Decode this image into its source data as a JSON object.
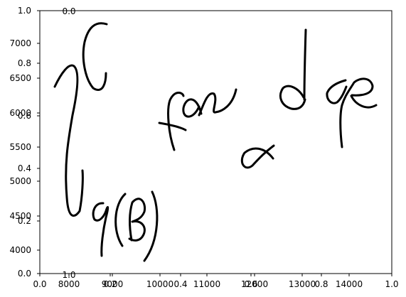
{
  "figure": {
    "background": "#ffffff",
    "ink_color": "#000000"
  },
  "axes": {
    "y_left_outer": {
      "ticks": [
        "0.0",
        "0.2",
        "0.4",
        "0.6",
        "0.8",
        "1.0"
      ]
    },
    "y_left_inner": {
      "ticks": [
        "4000",
        "4500",
        "5000",
        "5500",
        "6000",
        "6500",
        "7000"
      ]
    },
    "x_bottom_outer": {
      "ticks": [
        "0.0",
        "0.2",
        "0.4",
        "0.6",
        "0.8",
        "1.0"
      ]
    },
    "x_bottom_inner": {
      "ticks": [
        "8000",
        "9000",
        "10000",
        "11000",
        "12000",
        "13000",
        "14000"
      ]
    },
    "overlap_labels": {
      "top_left": "0.0",
      "bottom_left": "1.0"
    }
  },
  "handwriting": {
    "content": "\\int \\varphi(B) \\tan \\alpha \\, d\\varphi",
    "stroke_color": "#000000"
  }
}
